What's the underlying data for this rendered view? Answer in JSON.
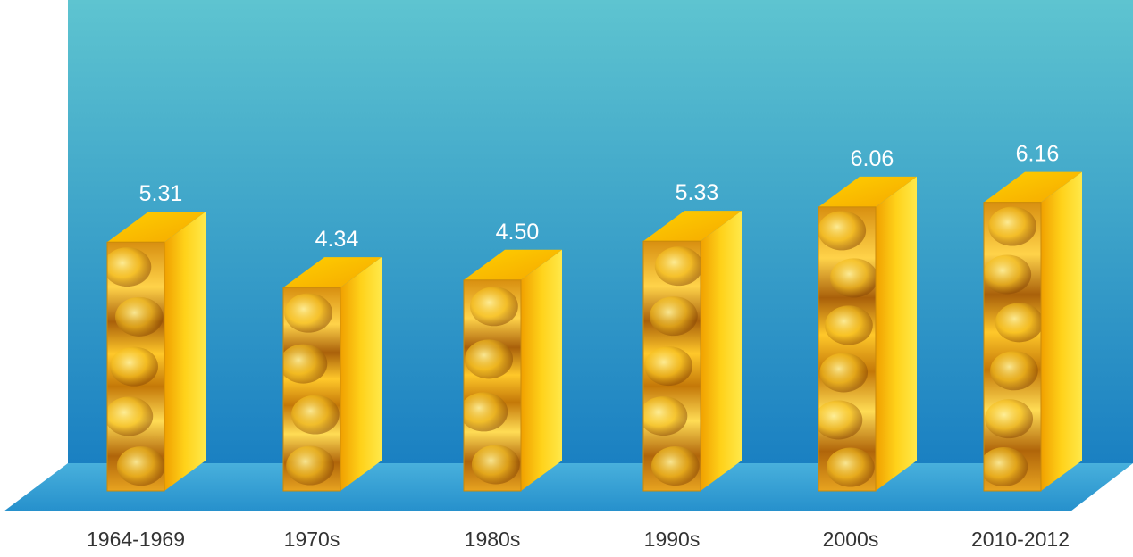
{
  "chart_data": {
    "type": "bar",
    "title": "",
    "xlabel": "",
    "ylabel": "",
    "categories": [
      "1964-1969",
      "1970s",
      "1980s",
      "1990s",
      "2000s",
      "2010-2012"
    ],
    "values": [
      5.31,
      4.34,
      4.5,
      5.33,
      6.06,
      6.16
    ],
    "value_labels": [
      "5.31",
      "4.34",
      "4.50",
      "5.33",
      "6.06",
      "6.16"
    ],
    "ylim": [
      0,
      6.6
    ],
    "grid": false,
    "legend": "none",
    "style": "3d-bars-gold-texture"
  },
  "colors": {
    "wall_top": "#5ec4d0",
    "wall_bottom": "#1a80c2",
    "floor": "#3aa2d8",
    "bar_gold": "#f5c400",
    "bar_face_dark": "#b86a06",
    "bar_highlight": "#ffe24a",
    "value_label": "#ffffff",
    "axis_label": "#333333"
  }
}
